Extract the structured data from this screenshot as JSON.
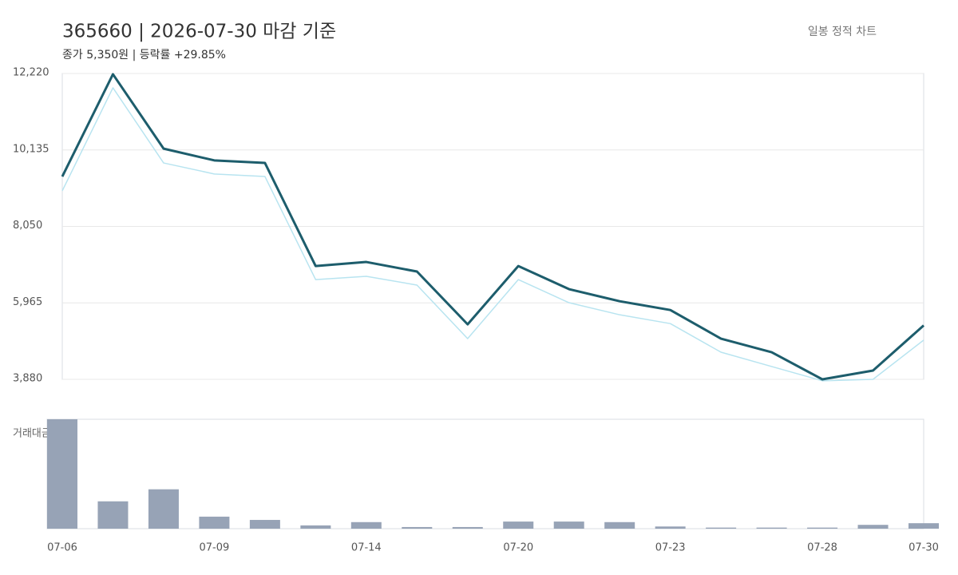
{
  "chart_data": [
    {
      "type": "line",
      "title": "365660 | 2026-07-30 마감 기준",
      "subtitle": "종가 5,350원 | 등락률 +29.85%",
      "badge": "일봉 정적 차트",
      "categories": [
        "07-06",
        null,
        null,
        "07-09",
        null,
        null,
        "07-14",
        null,
        null,
        "07-20",
        null,
        null,
        "07-23",
        null,
        null,
        "07-28",
        null,
        "07-30"
      ],
      "series": [
        {
          "color": "#b8e4f0",
          "values": [
            9020,
            11830,
            9780,
            9480,
            9410,
            6600,
            6690,
            6450,
            4990,
            6600,
            5970,
            5640,
            5400,
            4620,
            4230,
            3840,
            3880,
            4950
          ]
        },
        {
          "color": "#1d5d6c",
          "values": [
            9410,
            12200,
            10170,
            9850,
            9780,
            6970,
            7080,
            6820,
            5380,
            6970,
            6340,
            6010,
            5770,
            4990,
            4620,
            3880,
            4120,
            5350
          ]
        }
      ],
      "ylim": [
        3880,
        12220
      ],
      "yticks": [
        {
          "value": 3880,
          "label": "3,880"
        },
        {
          "value": 5965,
          "label": "5,965"
        },
        {
          "value": 8050,
          "label": "8,050"
        },
        {
          "value": 10135,
          "label": "10,135"
        },
        {
          "value": 12220,
          "label": "12,220"
        }
      ],
      "grid": true
    },
    {
      "type": "bar",
      "label": "거래대금",
      "color": "#97a3b6",
      "values": [
        100,
        25,
        36,
        11,
        8,
        3,
        6,
        1.5,
        1.5,
        6.5,
        6.5,
        6,
        2,
        1,
        1,
        1,
        3.5,
        5
      ]
    }
  ]
}
